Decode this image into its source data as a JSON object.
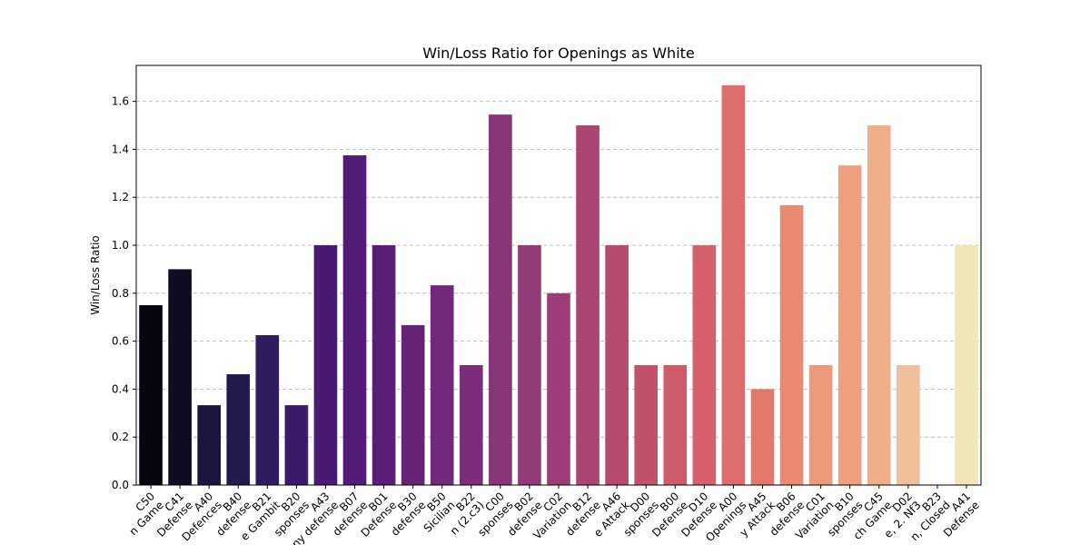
{
  "chart_data": {
    "type": "bar",
    "title": "Win/Loss Ratio for Openings as White",
    "xlabel": "",
    "ylabel": "Win/Loss Ratio",
    "ylim": [
      0,
      1.75
    ],
    "yticks": [
      "0.0",
      "0.2",
      "0.4",
      "0.6",
      "0.8",
      "1.0",
      "1.2",
      "1.4",
      "1.6"
    ],
    "grid": "y, dashed",
    "categories": [
      "C50\nn Game",
      "C41\nDefense",
      "A40\nDefences",
      "B40\ndefense",
      "B21\ne Gambit",
      "B20\nsponses",
      "A43\nny defense",
      "B07\ndefense",
      "B01\nDefense",
      "B30\ndefense",
      "B50\nSicilian",
      "B22\nn (2.c3)",
      "C00\nsponses",
      "B02\ndefense",
      "C02\nVariation",
      "B12\ndefense",
      "A46\ne Attack",
      "D00\nsponses",
      "B00\nDefense",
      "D10\nDefense",
      "A00\nOpenings",
      "A45\ny Attack",
      "B06\ndefense",
      "C01\nVariation",
      "B10\nsponses",
      "C45\nch Game",
      "D02\ne, 2. Nf3",
      "B23\nn, Closed",
      "A41\nDefense"
    ],
    "values": [
      0.75,
      0.9,
      0.333,
      0.462,
      0.625,
      0.333,
      1.0,
      1.375,
      1.0,
      0.667,
      0.833,
      0.5,
      1.545,
      1.0,
      0.8,
      1.5,
      1.0,
      0.5,
      0.5,
      1.0,
      1.667,
      0.4,
      1.167,
      0.5,
      1.333,
      1.5,
      0.5,
      0.0,
      1.0
    ],
    "colors": [
      "#06040d",
      "#110c24",
      "#1c1540",
      "#241b4d",
      "#2f1c5e",
      "#3b1a6a",
      "#471b72",
      "#521c76",
      "#5b1e77",
      "#662477",
      "#712a79",
      "#7c2e7a",
      "#873579",
      "#933a78",
      "#9e3d77",
      "#ab4674",
      "#b64b6e",
      "#c2526c",
      "#cf5a6a",
      "#d55f6a",
      "#df6d6b",
      "#e3786d",
      "#e88a74",
      "#eb9b7b",
      "#ee9f7f",
      "#f0ae8b",
      "#f0c09c",
      "#f0cfa8",
      "#f2e6b9"
    ]
  }
}
